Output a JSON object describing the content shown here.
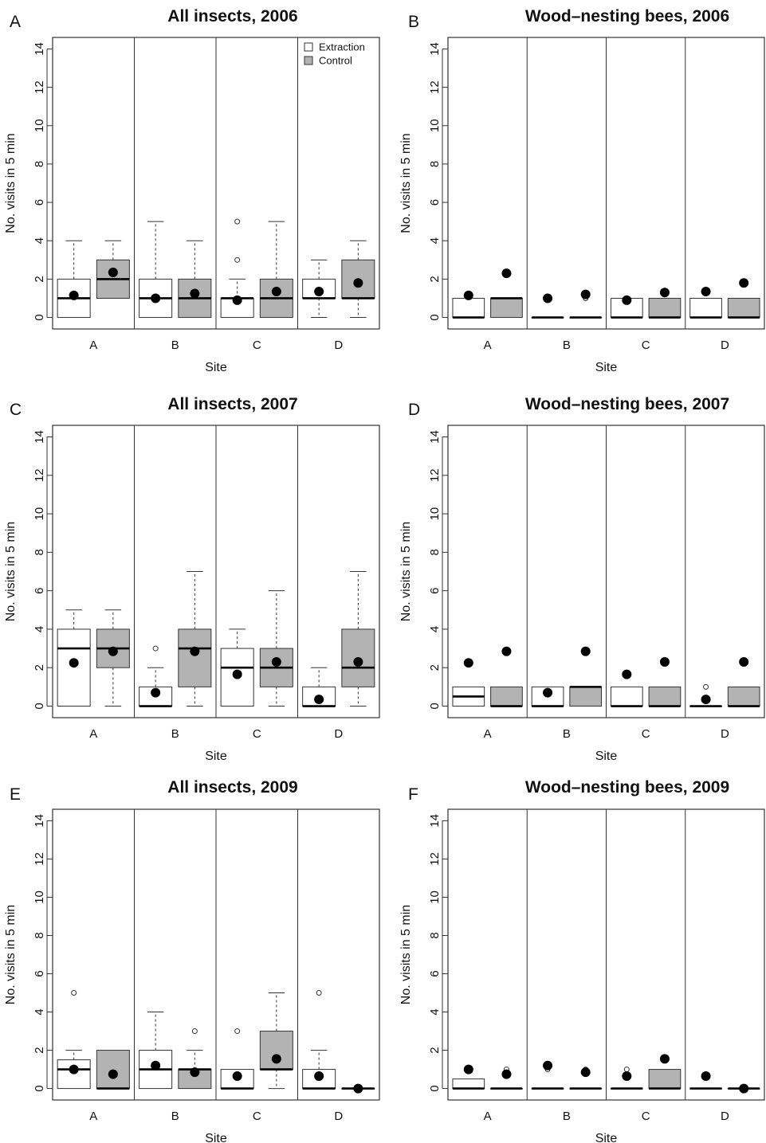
{
  "figure": {
    "legend": [
      {
        "label": "Extraction",
        "color": "#ffffff"
      },
      {
        "label": "Control",
        "color": "#b3b3b3"
      }
    ]
  },
  "chart_data": [
    {
      "type": "box",
      "panel_label": "A",
      "title": "All insects, 2006",
      "xlabel": "Site",
      "ylabel": "No. visits in 5 min",
      "ylim": [
        -0.6,
        14.6
      ],
      "yticks": [
        0,
        2,
        4,
        6,
        8,
        10,
        12,
        14
      ],
      "categories": [
        "A",
        "B",
        "C",
        "D"
      ],
      "series_order": [
        "Extraction",
        "Control"
      ],
      "legend_position": "top-right",
      "boxes": [
        {
          "site": "A",
          "group": "Extraction",
          "q1": 0,
          "median": 1,
          "q3": 2,
          "whisker_low": 0,
          "whisker_high": 4,
          "outliers": [],
          "mean": 1.15
        },
        {
          "site": "A",
          "group": "Control",
          "q1": 1,
          "median": 2,
          "q3": 3,
          "whisker_low": 1,
          "whisker_high": 4,
          "outliers": [],
          "mean": 2.35
        },
        {
          "site": "B",
          "group": "Extraction",
          "q1": 0,
          "median": 1,
          "q3": 2,
          "whisker_low": 0,
          "whisker_high": 5,
          "outliers": [],
          "mean": 1.0
        },
        {
          "site": "B",
          "group": "Control",
          "q1": 0,
          "median": 1,
          "q3": 2,
          "whisker_low": 0,
          "whisker_high": 4,
          "outliers": [],
          "mean": 1.25
        },
        {
          "site": "C",
          "group": "Extraction",
          "q1": 0,
          "median": 1,
          "q3": 1,
          "whisker_low": 0,
          "whisker_high": 2,
          "outliers": [
            3,
            5
          ],
          "mean": 0.9
        },
        {
          "site": "C",
          "group": "Control",
          "q1": 0,
          "median": 1,
          "q3": 2,
          "whisker_low": 0,
          "whisker_high": 5,
          "outliers": [],
          "mean": 1.35
        },
        {
          "site": "D",
          "group": "Extraction",
          "q1": 1,
          "median": 1,
          "q3": 2,
          "whisker_low": 0,
          "whisker_high": 3,
          "outliers": [],
          "mean": 1.35
        },
        {
          "site": "D",
          "group": "Control",
          "q1": 1,
          "median": 1,
          "q3": 3,
          "whisker_low": 0,
          "whisker_high": 4,
          "outliers": [],
          "mean": 1.8
        }
      ]
    },
    {
      "type": "box",
      "panel_label": "B",
      "title": "Wood–nesting bees, 2006",
      "xlabel": "Site",
      "ylabel": "No. visits in 5 min",
      "ylim": [
        -0.6,
        14.6
      ],
      "yticks": [
        0,
        2,
        4,
        6,
        8,
        10,
        12,
        14
      ],
      "categories": [
        "A",
        "B",
        "C",
        "D"
      ],
      "series_order": [
        "Extraction",
        "Control"
      ],
      "boxes": [
        {
          "site": "A",
          "group": "Extraction",
          "q1": 0,
          "median": 0,
          "q3": 1,
          "whisker_low": 0,
          "whisker_high": 1,
          "outliers": [],
          "mean": 1.15
        },
        {
          "site": "A",
          "group": "Control",
          "q1": 0,
          "median": 1,
          "q3": 1,
          "whisker_low": 0,
          "whisker_high": 1,
          "outliers": [],
          "mean": 2.3
        },
        {
          "site": "B",
          "group": "Extraction",
          "q1": 0,
          "median": 0,
          "q3": 0,
          "whisker_low": 0,
          "whisker_high": 0,
          "outliers": [],
          "mean": 1.0
        },
        {
          "site": "B",
          "group": "Control",
          "q1": 0,
          "median": 0,
          "q3": 0,
          "whisker_low": 0,
          "whisker_high": 0,
          "outliers": [
            1
          ],
          "mean": 1.2
        },
        {
          "site": "C",
          "group": "Extraction",
          "q1": 0,
          "median": 0,
          "q3": 1,
          "whisker_low": 0,
          "whisker_high": 1,
          "outliers": [],
          "mean": 0.9
        },
        {
          "site": "C",
          "group": "Control",
          "q1": 0,
          "median": 0,
          "q3": 1,
          "whisker_low": 0,
          "whisker_high": 1,
          "outliers": [],
          "mean": 1.3
        },
        {
          "site": "D",
          "group": "Extraction",
          "q1": 0,
          "median": 0,
          "q3": 1,
          "whisker_low": 0,
          "whisker_high": 1,
          "outliers": [],
          "mean": 1.35
        },
        {
          "site": "D",
          "group": "Control",
          "q1": 0,
          "median": 0,
          "q3": 1,
          "whisker_low": 0,
          "whisker_high": 1,
          "outliers": [],
          "mean": 1.8
        }
      ]
    },
    {
      "type": "box",
      "panel_label": "C",
      "title": "All insects, 2007",
      "xlabel": "Site",
      "ylabel": "No. visits in 5 min",
      "ylim": [
        -0.6,
        14.6
      ],
      "yticks": [
        0,
        2,
        4,
        6,
        8,
        10,
        12,
        14
      ],
      "categories": [
        "A",
        "B",
        "C",
        "D"
      ],
      "series_order": [
        "Extraction",
        "Control"
      ],
      "boxes": [
        {
          "site": "A",
          "group": "Extraction",
          "q1": 0,
          "median": 3,
          "q3": 4,
          "whisker_low": 0,
          "whisker_high": 5,
          "outliers": [],
          "mean": 2.25
        },
        {
          "site": "A",
          "group": "Control",
          "q1": 2,
          "median": 3,
          "q3": 4,
          "whisker_low": 0,
          "whisker_high": 5,
          "outliers": [],
          "mean": 2.85
        },
        {
          "site": "B",
          "group": "Extraction",
          "q1": 0,
          "median": 0,
          "q3": 1,
          "whisker_low": 0,
          "whisker_high": 2,
          "outliers": [
            3
          ],
          "mean": 0.7
        },
        {
          "site": "B",
          "group": "Control",
          "q1": 1,
          "median": 3,
          "q3": 4,
          "whisker_low": 0,
          "whisker_high": 7,
          "outliers": [],
          "mean": 2.85
        },
        {
          "site": "C",
          "group": "Extraction",
          "q1": 0,
          "median": 2,
          "q3": 3,
          "whisker_low": 0,
          "whisker_high": 4,
          "outliers": [],
          "mean": 1.65
        },
        {
          "site": "C",
          "group": "Control",
          "q1": 1,
          "median": 2,
          "q3": 3,
          "whisker_low": 0,
          "whisker_high": 6,
          "outliers": [],
          "mean": 2.3
        },
        {
          "site": "D",
          "group": "Extraction",
          "q1": 0,
          "median": 0,
          "q3": 1,
          "whisker_low": 0,
          "whisker_high": 2,
          "outliers": [],
          "mean": 0.35
        },
        {
          "site": "D",
          "group": "Control",
          "q1": 1,
          "median": 2,
          "q3": 4,
          "whisker_low": 0,
          "whisker_high": 7,
          "outliers": [],
          "mean": 2.3
        }
      ]
    },
    {
      "type": "box",
      "panel_label": "D",
      "title": "Wood–nesting bees, 2007",
      "xlabel": "Site",
      "ylabel": "No. visits in 5 min",
      "ylim": [
        -0.6,
        14.6
      ],
      "yticks": [
        0,
        2,
        4,
        6,
        8,
        10,
        12,
        14
      ],
      "categories": [
        "A",
        "B",
        "C",
        "D"
      ],
      "series_order": [
        "Extraction",
        "Control"
      ],
      "boxes": [
        {
          "site": "A",
          "group": "Extraction",
          "q1": 0,
          "median": 0.5,
          "q3": 1,
          "whisker_low": 0,
          "whisker_high": 1,
          "outliers": [],
          "mean": 2.25
        },
        {
          "site": "A",
          "group": "Control",
          "q1": 0,
          "median": 0,
          "q3": 1,
          "whisker_low": 0,
          "whisker_high": 1,
          "outliers": [],
          "mean": 2.85
        },
        {
          "site": "B",
          "group": "Extraction",
          "q1": 0,
          "median": 0,
          "q3": 1,
          "whisker_low": 0,
          "whisker_high": 1,
          "outliers": [],
          "mean": 0.7
        },
        {
          "site": "B",
          "group": "Control",
          "q1": 0,
          "median": 1,
          "q3": 1,
          "whisker_low": 0,
          "whisker_high": 1,
          "outliers": [],
          "mean": 2.85
        },
        {
          "site": "C",
          "group": "Extraction",
          "q1": 0,
          "median": 0,
          "q3": 1,
          "whisker_low": 0,
          "whisker_high": 1,
          "outliers": [],
          "mean": 1.65
        },
        {
          "site": "C",
          "group": "Control",
          "q1": 0,
          "median": 0,
          "q3": 1,
          "whisker_low": 0,
          "whisker_high": 1,
          "outliers": [],
          "mean": 2.3
        },
        {
          "site": "D",
          "group": "Extraction",
          "q1": 0,
          "median": 0,
          "q3": 0,
          "whisker_low": 0,
          "whisker_high": 0,
          "outliers": [
            1
          ],
          "mean": 0.35
        },
        {
          "site": "D",
          "group": "Control",
          "q1": 0,
          "median": 0,
          "q3": 1,
          "whisker_low": 0,
          "whisker_high": 1,
          "outliers": [],
          "mean": 2.3
        }
      ]
    },
    {
      "type": "box",
      "panel_label": "E",
      "title": "All insects, 2009",
      "xlabel": "Site",
      "ylabel": "No. visits in 5 min",
      "ylim": [
        -0.6,
        14.6
      ],
      "yticks": [
        0,
        2,
        4,
        6,
        8,
        10,
        12,
        14
      ],
      "categories": [
        "A",
        "B",
        "C",
        "D"
      ],
      "series_order": [
        "Extraction",
        "Control"
      ],
      "boxes": [
        {
          "site": "A",
          "group": "Extraction",
          "q1": 0,
          "median": 1,
          "q3": 1.5,
          "whisker_low": 0,
          "whisker_high": 2,
          "outliers": [
            5
          ],
          "mean": 1.0
        },
        {
          "site": "A",
          "group": "Control",
          "q1": 0,
          "median": 0,
          "q3": 2,
          "whisker_low": 0,
          "whisker_high": 2,
          "outliers": [],
          "mean": 0.75
        },
        {
          "site": "B",
          "group": "Extraction",
          "q1": 0,
          "median": 1,
          "q3": 2,
          "whisker_low": 0,
          "whisker_high": 4,
          "outliers": [],
          "mean": 1.2
        },
        {
          "site": "B",
          "group": "Control",
          "q1": 0,
          "median": 1,
          "q3": 1,
          "whisker_low": 0,
          "whisker_high": 2,
          "outliers": [
            3
          ],
          "mean": 0.85
        },
        {
          "site": "C",
          "group": "Extraction",
          "q1": 0,
          "median": 0,
          "q3": 1,
          "whisker_low": 0,
          "whisker_high": 1,
          "outliers": [
            3
          ],
          "mean": 0.65
        },
        {
          "site": "C",
          "group": "Control",
          "q1": 1,
          "median": 1,
          "q3": 3,
          "whisker_low": 0,
          "whisker_high": 5,
          "outliers": [],
          "mean": 1.55
        },
        {
          "site": "D",
          "group": "Extraction",
          "q1": 0,
          "median": 0,
          "q3": 1,
          "whisker_low": 0,
          "whisker_high": 2,
          "outliers": [
            5
          ],
          "mean": 0.65
        },
        {
          "site": "D",
          "group": "Control",
          "q1": 0,
          "median": 0,
          "q3": 0,
          "whisker_low": 0,
          "whisker_high": 0,
          "outliers": [],
          "mean": 0.0
        }
      ]
    },
    {
      "type": "box",
      "panel_label": "F",
      "title": "Wood–nesting bees, 2009",
      "xlabel": "Site",
      "ylabel": "No. visits in 5 min",
      "ylim": [
        -0.6,
        14.6
      ],
      "yticks": [
        0,
        2,
        4,
        6,
        8,
        10,
        12,
        14
      ],
      "categories": [
        "A",
        "B",
        "C",
        "D"
      ],
      "series_order": [
        "Extraction",
        "Control"
      ],
      "boxes": [
        {
          "site": "A",
          "group": "Extraction",
          "q1": 0,
          "median": 0,
          "q3": 0.5,
          "whisker_low": 0,
          "whisker_high": 0.5,
          "outliers": [
            1
          ],
          "mean": 1.0
        },
        {
          "site": "A",
          "group": "Control",
          "q1": 0,
          "median": 0,
          "q3": 0,
          "whisker_low": 0,
          "whisker_high": 0,
          "outliers": [
            1
          ],
          "mean": 0.75
        },
        {
          "site": "B",
          "group": "Extraction",
          "q1": 0,
          "median": 0,
          "q3": 0,
          "whisker_low": 0,
          "whisker_high": 0,
          "outliers": [
            1
          ],
          "mean": 1.2
        },
        {
          "site": "B",
          "group": "Control",
          "q1": 0,
          "median": 0,
          "q3": 0,
          "whisker_low": 0,
          "whisker_high": 0,
          "outliers": [
            1
          ],
          "mean": 0.85
        },
        {
          "site": "C",
          "group": "Extraction",
          "q1": 0,
          "median": 0,
          "q3": 0,
          "whisker_low": 0,
          "whisker_high": 0,
          "outliers": [
            1
          ],
          "mean": 0.65
        },
        {
          "site": "C",
          "group": "Control",
          "q1": 0,
          "median": 0,
          "q3": 1,
          "whisker_low": 0,
          "whisker_high": 1,
          "outliers": [],
          "mean": 1.55
        },
        {
          "site": "D",
          "group": "Extraction",
          "q1": 0,
          "median": 0,
          "q3": 0,
          "whisker_low": 0,
          "whisker_high": 0,
          "outliers": [],
          "mean": 0.65
        },
        {
          "site": "D",
          "group": "Control",
          "q1": 0,
          "median": 0,
          "q3": 0,
          "whisker_low": 0,
          "whisker_high": 0,
          "outliers": [],
          "mean": 0.0
        }
      ]
    }
  ]
}
